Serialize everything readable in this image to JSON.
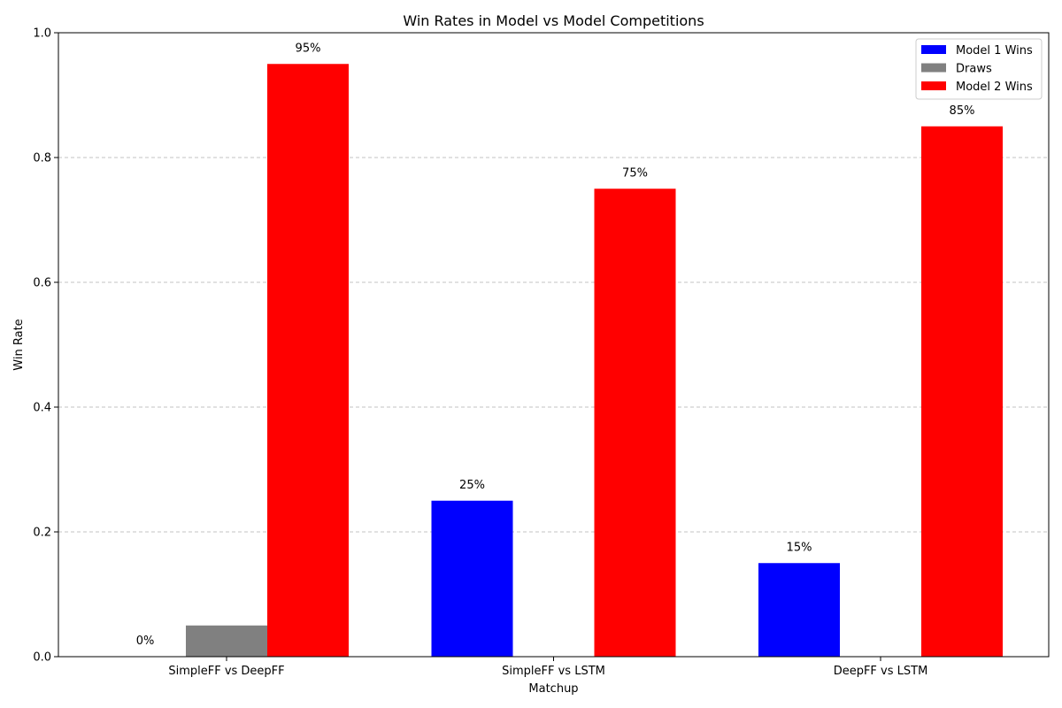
{
  "chart_data": {
    "type": "bar",
    "title": "Win Rates in Model vs Model Competitions",
    "xlabel": "Matchup",
    "ylabel": "Win Rate",
    "ylim": [
      0,
      1.0
    ],
    "yticks": [
      "0.0",
      "0.2",
      "0.4",
      "0.6",
      "0.8",
      "1.0"
    ],
    "grid": "y-dashed",
    "legend_position": "top-right",
    "categories": [
      "SimpleFF vs DeepFF",
      "SimpleFF vs LSTM",
      "DeepFF vs LSTM"
    ],
    "series": [
      {
        "name": "Model 1 Wins",
        "color": "#0000ff",
        "values": [
          0.0,
          0.25,
          0.15
        ],
        "labels": [
          "0%",
          "25%",
          "15%"
        ]
      },
      {
        "name": "Draws",
        "color": "#808080",
        "values": [
          0.05,
          0.0,
          0.0
        ],
        "labels": [
          "",
          "",
          ""
        ]
      },
      {
        "name": "Model 2 Wins",
        "color": "#ff0000",
        "values": [
          0.95,
          0.75,
          0.85
        ],
        "labels": [
          "95%",
          "75%",
          "85%"
        ]
      }
    ]
  }
}
